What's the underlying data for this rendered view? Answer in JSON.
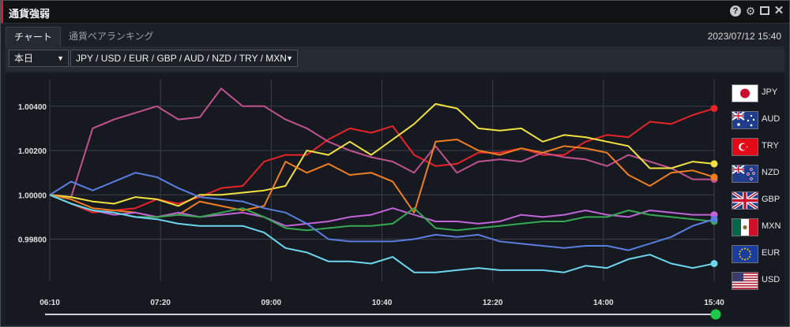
{
  "window": {
    "title": "通貨強弱"
  },
  "tabs": [
    {
      "label": "チャート"
    },
    {
      "label": "通貨ペアランキング"
    }
  ],
  "datetime": "2023/07/12 15:40",
  "controls": {
    "period": "本日",
    "currencies": "JPY / USD / EUR / GBP / AUD / NZD / TRY / MXN"
  },
  "legend": [
    {
      "code": "JPY"
    },
    {
      "code": "AUD"
    },
    {
      "code": "TRY"
    },
    {
      "code": "NZD"
    },
    {
      "code": "GBP"
    },
    {
      "code": "MXN"
    },
    {
      "code": "EUR"
    },
    {
      "code": "USD"
    }
  ],
  "chart_data": {
    "type": "line",
    "x_labels": [
      "06:10",
      "07:20",
      "09:00",
      "10:40",
      "12:20",
      "14:00",
      "15:40"
    ],
    "y_ticks": [
      "1.00400",
      "1.00200",
      "1.00000",
      "0.99800"
    ],
    "ylim": [
      0.9961,
      1.0052
    ],
    "grid": true,
    "series": [
      {
        "name": "TRY",
        "color": "#e8232a",
        "values": [
          1.0,
          0.9996,
          0.9992,
          0.9993,
          0.9994,
          0.9998,
          0.9996,
          0.9999,
          1.0003,
          1.0004,
          1.0015,
          1.0018,
          1.0018,
          1.0025,
          1.003,
          1.0028,
          1.0031,
          1.0018,
          1.0013,
          1.0014,
          1.0019,
          1.0019,
          1.0021,
          1.0018,
          1.0018,
          1.0024,
          1.0027,
          1.0026,
          1.0033,
          1.0032,
          1.0036,
          1.0039
        ]
      },
      {
        "name": "AUD",
        "color": "#c2528f",
        "values": [
          1.0,
          0.9999,
          1.003,
          1.0034,
          1.0037,
          1.004,
          1.0034,
          1.0035,
          1.0048,
          1.004,
          1.004,
          1.0034,
          1.003,
          1.0024,
          1.002,
          1.0017,
          1.0015,
          1.001,
          1.0022,
          1.001,
          1.0015,
          1.0016,
          1.0015,
          1.0019,
          1.0017,
          1.0016,
          1.0013,
          1.0018,
          1.0015,
          1.0012,
          1.0007,
          1.0007
        ]
      },
      {
        "name": "JPY",
        "color": "#f0e040",
        "values": [
          1.0,
          0.9999,
          0.9997,
          0.9996,
          0.9999,
          0.9998,
          0.9995,
          1.0,
          1.0,
          1.0001,
          1.0002,
          1.0004,
          1.002,
          1.0018,
          1.0024,
          1.0018,
          1.0025,
          1.0032,
          1.0041,
          1.0039,
          1.003,
          1.0029,
          1.003,
          1.0024,
          1.0027,
          1.0026,
          1.0024,
          1.0022,
          1.0012,
          1.0012,
          1.0015,
          1.0014
        ]
      },
      {
        "name": "NZD",
        "color": "#ef7e22",
        "values": [
          1.0,
          0.9998,
          0.9994,
          0.9993,
          0.9992,
          0.999,
          0.9991,
          0.9997,
          0.9995,
          0.9993,
          0.9995,
          1.0015,
          1.001,
          1.0014,
          1.0009,
          1.001,
          1.0006,
          0.9992,
          1.0024,
          1.0025,
          1.002,
          1.0018,
          1.0021,
          1.0019,
          1.0022,
          1.0021,
          1.0019,
          1.0009,
          1.0004,
          1.001,
          1.0011,
          1.0008
        ]
      },
      {
        "name": "GBP",
        "color": "#c263d8",
        "values": [
          1.0,
          0.9996,
          0.9993,
          0.9991,
          0.9992,
          0.999,
          0.9992,
          0.999,
          0.9991,
          0.9992,
          0.999,
          0.9986,
          0.9987,
          0.9988,
          0.999,
          0.9991,
          0.9994,
          0.9991,
          0.9988,
          0.9988,
          0.9987,
          0.9988,
          0.9991,
          0.999,
          0.9991,
          0.9993,
          0.9991,
          0.999,
          0.9993,
          0.9992,
          0.9991,
          0.9991
        ]
      },
      {
        "name": "MXN",
        "color": "#36a853",
        "values": [
          1.0,
          0.9996,
          0.9993,
          0.9992,
          0.999,
          0.999,
          0.9991,
          0.999,
          0.9992,
          0.9994,
          0.999,
          0.9985,
          0.9984,
          0.9985,
          0.9986,
          0.9986,
          0.9987,
          0.9994,
          0.9985,
          0.9984,
          0.9985,
          0.9986,
          0.9987,
          0.9988,
          0.9988,
          0.999,
          0.999,
          0.9993,
          0.9991,
          0.999,
          0.9989,
          0.9988
        ]
      },
      {
        "name": "EUR",
        "color": "#5a7de0",
        "values": [
          1.0,
          1.0006,
          1.0002,
          1.0006,
          1.001,
          1.0008,
          1.0003,
          0.9999,
          0.9998,
          0.9997,
          0.9994,
          0.9992,
          0.9987,
          0.998,
          0.9979,
          0.9979,
          0.9979,
          0.998,
          0.9982,
          0.9981,
          0.9982,
          0.9979,
          0.9978,
          0.9977,
          0.9976,
          0.9977,
          0.9977,
          0.9975,
          0.9978,
          0.9981,
          0.9986,
          0.9989
        ]
      },
      {
        "name": "USD",
        "color": "#6cd6ee",
        "values": [
          1.0,
          0.9996,
          0.9993,
          0.9992,
          0.999,
          0.9989,
          0.9987,
          0.9986,
          0.9986,
          0.9986,
          0.9983,
          0.9976,
          0.9974,
          0.997,
          0.997,
          0.9969,
          0.9972,
          0.9965,
          0.9965,
          0.9966,
          0.9967,
          0.9966,
          0.9966,
          0.9966,
          0.9965,
          0.9968,
          0.9967,
          0.9971,
          0.9973,
          0.9969,
          0.9967,
          0.9969
        ]
      }
    ]
  }
}
